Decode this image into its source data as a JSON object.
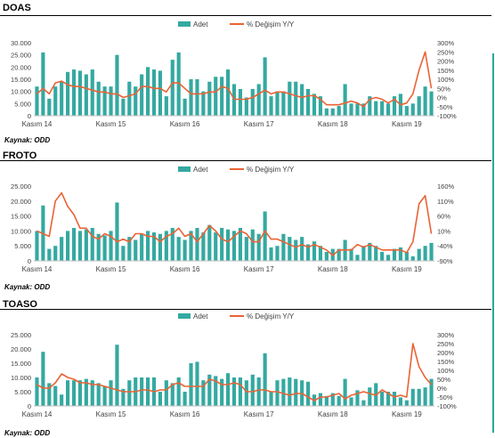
{
  "colors": {
    "bar": "#34a9a1",
    "line": "#ea6335",
    "axis": "#bfbfbf",
    "text": "#404040",
    "rule": "#000000",
    "accent_bar": "#2aa59a"
  },
  "legend": {
    "bar_label": "Adet",
    "line_label": "% Değişim Y/Y"
  },
  "x_tick_labels": [
    "Kasım 14",
    "Kasım 15",
    "Kasım 16",
    "Kasım 17",
    "Kasım 18",
    "Kasım 19"
  ],
  "chart_data": [
    {
      "type": "bar",
      "title": "DOAS",
      "source": "Kaynak: ODD",
      "categories_ticks": [
        "Kasım 14",
        "Kasım 15",
        "Kasım 16",
        "Kasım 17",
        "Kasım 18",
        "Kasım 19"
      ],
      "y_left_ticks": [
        "0",
        "5.000",
        "10.000",
        "15.000",
        "20.000",
        "25.000",
        "30.000"
      ],
      "y_right_ticks": [
        "-100%",
        "-50%",
        "0%",
        "50%",
        "100%",
        "150%",
        "200%",
        "250%",
        "300%"
      ],
      "ylim_left": [
        0,
        30000
      ],
      "ylim_right": [
        -100,
        300
      ],
      "legend_position": "top-center",
      "series": [
        {
          "name": "Adet",
          "type": "bar",
          "values": [
            12000,
            26000,
            7000,
            12000,
            14000,
            18000,
            19000,
            18500,
            17000,
            19000,
            14000,
            12000,
            12000,
            25000,
            7000,
            14000,
            12000,
            17000,
            20000,
            19000,
            18500,
            8000,
            23000,
            26000,
            7000,
            15000,
            15000,
            10000,
            14000,
            16000,
            16000,
            19000,
            13000,
            11000,
            7500,
            11000,
            13000,
            24000,
            8000,
            10000,
            10000,
            14000,
            14000,
            13000,
            11000,
            9000,
            8000,
            3000,
            3000,
            4000,
            13000,
            5000,
            5000,
            5000,
            8000,
            6000,
            6000,
            5000,
            8000,
            9000,
            4000,
            5000,
            8000,
            12000,
            10000
          ]
        },
        {
          "name": "% Değişim Y/Y",
          "type": "line",
          "values": [
            20,
            50,
            20,
            80,
            90,
            70,
            60,
            60,
            50,
            40,
            30,
            30,
            20,
            20,
            0,
            10,
            20,
            60,
            60,
            50,
            50,
            30,
            80,
            80,
            50,
            20,
            20,
            20,
            30,
            30,
            60,
            50,
            -10,
            -10,
            -10,
            0,
            20,
            40,
            20,
            30,
            30,
            20,
            10,
            0,
            10,
            10,
            -10,
            -40,
            -40,
            -40,
            -30,
            -20,
            -30,
            -50,
            -10,
            0,
            -10,
            -30,
            -10,
            -40,
            -30,
            20,
            150,
            250,
            50
          ]
        }
      ]
    },
    {
      "type": "bar",
      "title": "FROTO",
      "source": "Kaynak: ODD",
      "categories_ticks": [
        "Kasım 14",
        "Kasım 15",
        "Kasım 16",
        "Kasım 17",
        "Kasım 18",
        "Kasım 19"
      ],
      "y_left_ticks": [
        "0",
        "5.000",
        "10.000",
        "15.000",
        "20.000",
        "25.000"
      ],
      "y_right_ticks": [
        "-90%",
        "-40%",
        "10%",
        "60%",
        "110%",
        "160%"
      ],
      "ylim_left": [
        0,
        25000
      ],
      "ylim_right": [
        -90,
        185
      ],
      "legend_position": "top-center",
      "series": [
        {
          "name": "Adet",
          "type": "bar",
          "values": [
            10000,
            18500,
            4000,
            5000,
            8000,
            10000,
            11000,
            10000,
            10500,
            11000,
            9000,
            8500,
            10000,
            19500,
            5000,
            8000,
            7000,
            9000,
            10000,
            9500,
            9000,
            10000,
            11000,
            8000,
            7000,
            10000,
            11000,
            9500,
            12000,
            9500,
            11000,
            10500,
            10000,
            11000,
            8000,
            10500,
            9000,
            16500,
            4500,
            5000,
            9000,
            8000,
            7000,
            8000,
            5500,
            6500,
            5000,
            3000,
            4000,
            4000,
            7000,
            4000,
            2000,
            5000,
            6000,
            5000,
            3000,
            2000,
            4000,
            4500,
            3000,
            1500,
            4000,
            5000,
            6000
          ]
        },
        {
          "name": "% Değişim Y/Y",
          "type": "line",
          "values": [
            20,
            10,
            0,
            130,
            160,
            110,
            80,
            30,
            30,
            0,
            -10,
            10,
            0,
            -20,
            -10,
            -20,
            10,
            10,
            0,
            0,
            -20,
            0,
            10,
            30,
            0,
            10,
            -20,
            10,
            40,
            20,
            -10,
            -20,
            0,
            20,
            10,
            -20,
            -20,
            20,
            -10,
            -10,
            -20,
            -30,
            -40,
            -30,
            -40,
            -30,
            -40,
            -50,
            -70,
            -50,
            -50,
            -50,
            -30,
            -40,
            -30,
            -40,
            -50,
            -50,
            -50,
            -50,
            -60,
            -20,
            120,
            150,
            10
          ]
        }
      ]
    },
    {
      "type": "bar",
      "title": "TOASO",
      "source": "Kaynak: ODD",
      "categories_ticks": [
        "Kasım 14",
        "Kasım 15",
        "Kasım 16",
        "Kasım 17",
        "Kasım 18",
        "Kasım 19"
      ],
      "y_left_ticks": [
        "0",
        "5.000",
        "10.000",
        "15.000",
        "20.000",
        "25.000"
      ],
      "y_right_ticks": [
        "-100%",
        "-50%",
        "0%",
        "50%",
        "100%",
        "150%",
        "200%",
        "250%",
        "300%"
      ],
      "ylim_left": [
        0,
        25000
      ],
      "ylim_right": [
        -100,
        300
      ],
      "legend_position": "top-center",
      "series": [
        {
          "name": "Adet",
          "type": "bar",
          "values": [
            10000,
            19000,
            8000,
            7000,
            4000,
            9000,
            9000,
            9000,
            9500,
            9000,
            8000,
            7000,
            9000,
            21500,
            6000,
            9000,
            10000,
            10000,
            10000,
            10000,
            5000,
            9000,
            8000,
            10000,
            5000,
            15000,
            15500,
            9000,
            11000,
            10500,
            9500,
            11500,
            10000,
            10000,
            9000,
            11000,
            10000,
            18500,
            5000,
            9000,
            9500,
            10000,
            9500,
            9000,
            8500,
            4000,
            4500,
            3500,
            4500,
            3500,
            9500,
            3000,
            5500,
            2000,
            6500,
            8000,
            5000,
            5000,
            5000,
            3000,
            2000,
            6000,
            6000,
            6500,
            9500
          ]
        },
        {
          "name": "% Değişim Y/Y",
          "type": "line",
          "values": [
            20,
            0,
            0,
            30,
            80,
            60,
            50,
            30,
            30,
            20,
            20,
            10,
            0,
            -10,
            -20,
            -20,
            -20,
            -10,
            -10,
            -20,
            -10,
            -10,
            20,
            30,
            10,
            10,
            10,
            10,
            50,
            40,
            20,
            20,
            30,
            20,
            -20,
            -20,
            -10,
            -10,
            -20,
            -20,
            -30,
            -40,
            -30,
            -30,
            -50,
            -70,
            -50,
            -50,
            -40,
            -30,
            -60,
            -40,
            -30,
            -20,
            -30,
            -40,
            -10,
            -30,
            -50,
            -40,
            -50,
            250,
            120,
            60,
            20
          ]
        }
      ]
    }
  ]
}
